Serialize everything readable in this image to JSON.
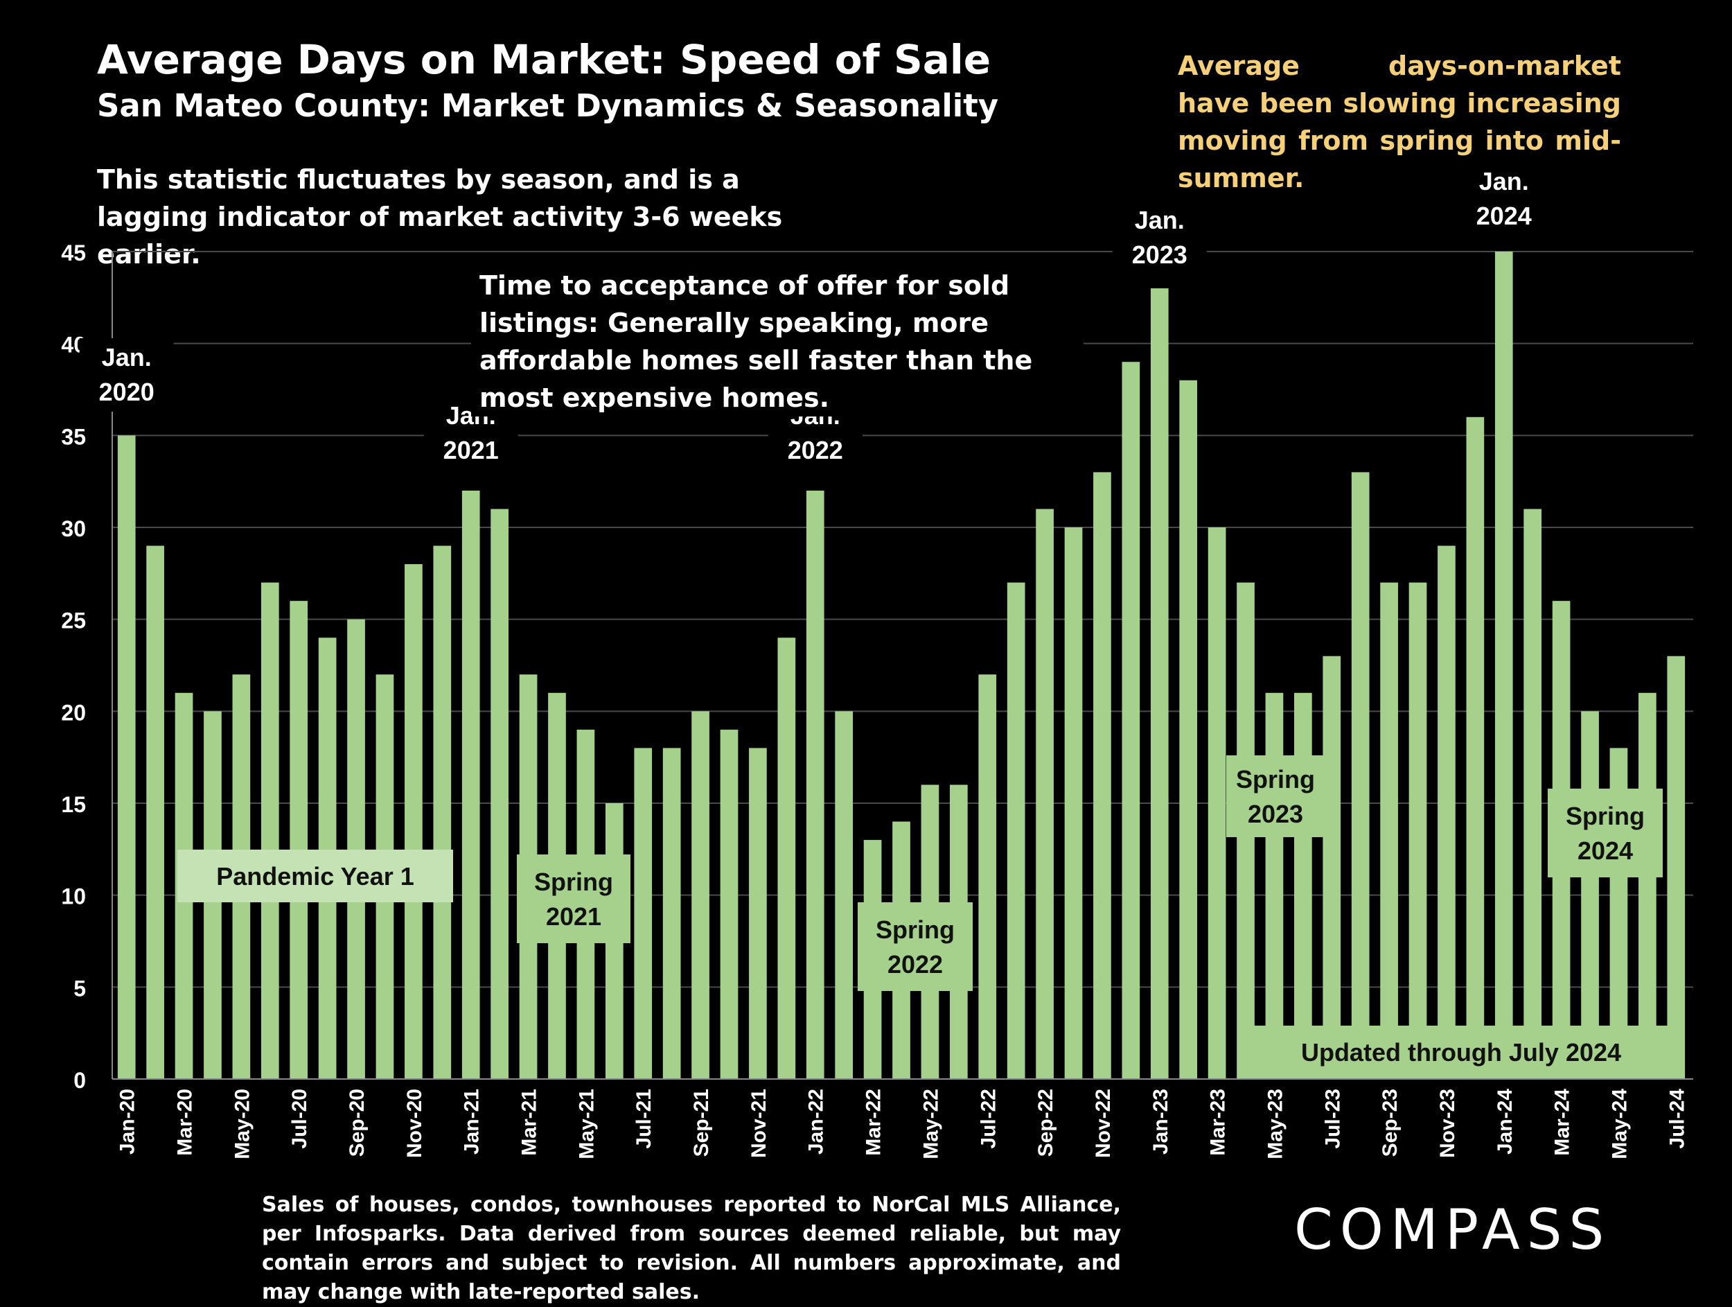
{
  "title": "Average Days on Market:  Speed of Sale",
  "subtitle": "San Mateo County: Market Dynamics & Seasonality",
  "note_lagging": "This statistic fluctuates by season, and is a lagging indicator of market activity 3-6 weeks earlier.",
  "note_acceptance": "Time to acceptance of offer for sold listings: Generally speaking, more affordable homes sell faster than the most expensive homes.",
  "callout": "Average days-on-market have been slowing increasing moving from spring into mid-summer.",
  "footnote": "Sales of houses, condos, townhouses reported to NorCal MLS Alliance, per Infosparks. Data derived from sources deemed reliable, but may contain errors and subject to revision. All numbers approximate, and may change with late-reported sales.",
  "logo": "COMPASS",
  "colors": {
    "bar": "#a6d18d",
    "label_box": "#a6d18d",
    "pandemic_box": "#c4e2b3",
    "callout_text": "#f5d078",
    "background": "#000000"
  },
  "chart_data": {
    "type": "bar",
    "ylim": [
      0,
      45
    ],
    "yticks": [
      0,
      5,
      10,
      15,
      20,
      25,
      30,
      35,
      40,
      45
    ],
    "grid": true,
    "categories": [
      "Jan-20",
      "Feb-20",
      "Mar-20",
      "Apr-20",
      "May-20",
      "Jun-20",
      "Jul-20",
      "Aug-20",
      "Sep-20",
      "Oct-20",
      "Nov-20",
      "Dec-20",
      "Jan-21",
      "Feb-21",
      "Mar-21",
      "Apr-21",
      "May-21",
      "Jun-21",
      "Jul-21",
      "Aug-21",
      "Sep-21",
      "Oct-21",
      "Nov-21",
      "Dec-21",
      "Jan-22",
      "Feb-22",
      "Mar-22",
      "Apr-22",
      "May-22",
      "Jun-22",
      "Jul-22",
      "Aug-22",
      "Sep-22",
      "Oct-22",
      "Nov-22",
      "Dec-22",
      "Jan-23",
      "Feb-23",
      "Mar-23",
      "Apr-23",
      "May-23",
      "Jun-23",
      "Jul-23",
      "Aug-23",
      "Sep-23",
      "Oct-23",
      "Nov-23",
      "Dec-23",
      "Jan-24",
      "Feb-24",
      "Mar-24",
      "Apr-24",
      "May-24",
      "Jun-24",
      "Jul-24"
    ],
    "tick_labels": [
      "Jan-20",
      "Mar-20",
      "May-20",
      "Jul-20",
      "Sep-20",
      "Nov-20",
      "Jan-21",
      "Mar-21",
      "May-21",
      "Jul-21",
      "Sep-21",
      "Nov-21",
      "Jan-22",
      "Mar-22",
      "May-22",
      "Jul-22",
      "Sep-22",
      "Nov-22",
      "Jan-23",
      "Mar-23",
      "May-23",
      "Jul-23",
      "Sep-23",
      "Nov-23",
      "Jan-24",
      "Mar-24",
      "May-24",
      "Jul-24"
    ],
    "values": [
      35,
      29,
      21,
      20,
      22,
      27,
      26,
      24,
      25,
      22,
      28,
      29,
      32,
      31,
      22,
      21,
      19,
      15,
      18,
      18,
      20,
      19,
      18,
      24,
      32,
      20,
      13,
      14,
      16,
      16,
      22,
      27,
      31,
      30,
      33,
      39,
      43,
      38,
      30,
      27,
      21,
      21,
      23,
      33,
      27,
      27,
      29,
      36,
      45,
      31,
      26,
      20,
      18,
      21,
      23
    ],
    "annotations": [
      {
        "text": "Jan. 2020",
        "category": "Jan-20"
      },
      {
        "text": "Jan. 2021",
        "category": "Jan-21"
      },
      {
        "text": "Jan. 2022",
        "category": "Jan-22"
      },
      {
        "text": "Jan. 2023",
        "category": "Jan-23"
      },
      {
        "text": "Jan. 2024",
        "category": "Jan-24"
      }
    ],
    "boxed_labels": [
      {
        "text": "Pandemic Year 1"
      },
      {
        "text": "Spring 2021"
      },
      {
        "text": "Spring 2022"
      },
      {
        "text": "Spring 2023"
      },
      {
        "text": "Spring 2024"
      },
      {
        "text": "Updated through July 2024"
      }
    ]
  }
}
